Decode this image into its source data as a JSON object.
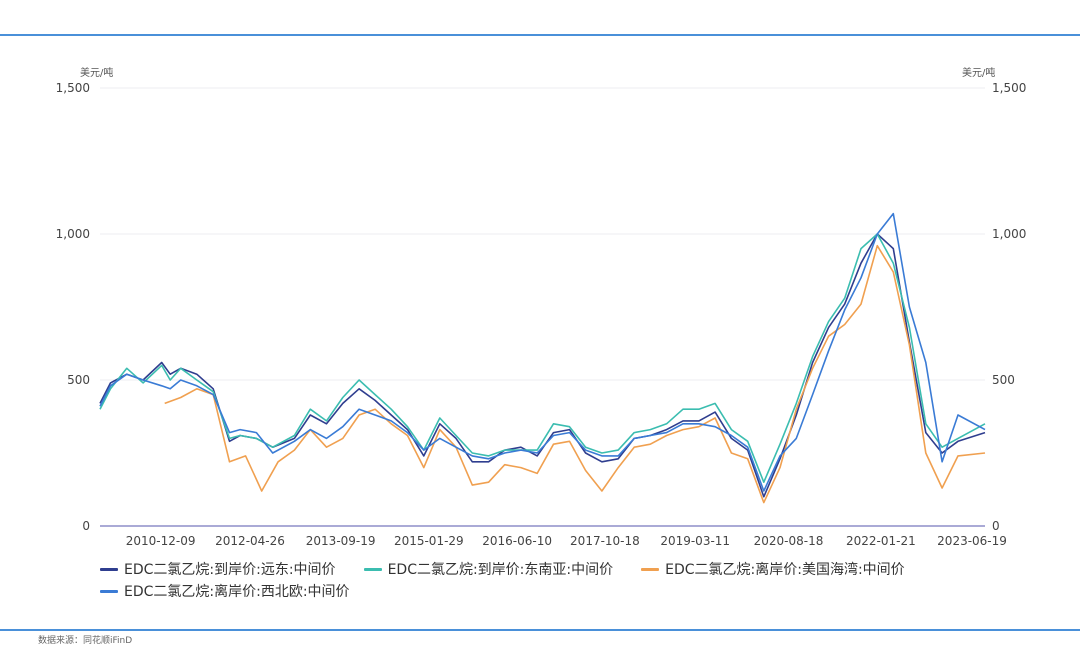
{
  "source_text": "数据来源：同花顺iFinD",
  "chart_data": {
    "type": "line",
    "y_unit_left": "美元/吨",
    "y_unit_right": "美元/吨",
    "ylim": [
      0,
      1500
    ],
    "y_ticks": [
      0,
      500,
      1000,
      1500
    ],
    "y_tick_labels": [
      "0",
      "500",
      "1,000",
      "1,500"
    ],
    "x_range": [
      "2010-01-01",
      "2023-08-31"
    ],
    "x_tick_labels": [
      "2010-12-09",
      "2012-04-26",
      "2013-09-19",
      "2015-01-29",
      "2016-06-10",
      "2017-10-18",
      "2019-03-11",
      "2020-08-18",
      "2022-01-21",
      "2023-06-19"
    ],
    "grid": true,
    "legend_position": "bottom",
    "series": [
      {
        "name": "EDC二氯乙烷:到岸价:远东:中间价",
        "color": "#2f3e8f",
        "x": [
          "2010-01-01",
          "2010-03-01",
          "2010-06-01",
          "2010-09-01",
          "2010-12-15",
          "2011-02-01",
          "2011-04-01",
          "2011-07-01",
          "2011-10-01",
          "2012-01-01",
          "2012-03-01",
          "2012-06-01",
          "2012-09-01",
          "2013-01-01",
          "2013-04-01",
          "2013-07-01",
          "2013-10-01",
          "2014-01-01",
          "2014-04-01",
          "2014-07-01",
          "2014-10-01",
          "2015-01-01",
          "2015-04-01",
          "2015-07-01",
          "2015-10-01",
          "2016-01-01",
          "2016-04-01",
          "2016-07-01",
          "2016-10-01",
          "2017-01-01",
          "2017-04-01",
          "2017-07-01",
          "2017-10-01",
          "2018-01-01",
          "2018-04-01",
          "2018-07-01",
          "2018-10-01",
          "2019-01-01",
          "2019-04-01",
          "2019-07-01",
          "2019-10-01",
          "2020-01-01",
          "2020-04-01",
          "2020-07-01",
          "2020-10-01",
          "2021-01-01",
          "2021-04-01",
          "2021-07-01",
          "2021-10-01",
          "2022-01-01",
          "2022-04-01",
          "2022-07-01",
          "2022-10-01",
          "2023-01-01",
          "2023-04-01",
          "2023-08-31"
        ],
        "values": [
          420,
          490,
          520,
          500,
          560,
          520,
          540,
          520,
          470,
          290,
          310,
          300,
          270,
          300,
          380,
          350,
          420,
          470,
          430,
          380,
          330,
          240,
          350,
          300,
          220,
          220,
          260,
          270,
          240,
          320,
          330,
          250,
          220,
          230,
          300,
          310,
          330,
          360,
          360,
          390,
          300,
          260,
          100,
          230,
          380,
          560,
          680,
          760,
          900,
          1000,
          950,
          630,
          320,
          250,
          290,
          320
        ]
      },
      {
        "name": "EDC二氯乙烷:到岸价:东南亚:中间价",
        "color": "#3bbdb0",
        "x": [
          "2010-01-01",
          "2010-03-01",
          "2010-06-01",
          "2010-09-01",
          "2010-12-15",
          "2011-02-01",
          "2011-04-01",
          "2011-07-01",
          "2011-10-01",
          "2012-01-01",
          "2012-03-01",
          "2012-06-01",
          "2012-09-01",
          "2013-01-01",
          "2013-04-01",
          "2013-07-01",
          "2013-10-01",
          "2014-01-01",
          "2014-04-01",
          "2014-07-01",
          "2014-10-01",
          "2015-01-01",
          "2015-04-01",
          "2015-07-01",
          "2015-10-01",
          "2016-01-01",
          "2016-04-01",
          "2016-07-01",
          "2016-10-01",
          "2017-01-01",
          "2017-04-01",
          "2017-07-01",
          "2017-10-01",
          "2018-01-01",
          "2018-04-01",
          "2018-07-01",
          "2018-10-01",
          "2019-01-01",
          "2019-04-01",
          "2019-07-01",
          "2019-10-01",
          "2020-01-01",
          "2020-04-01",
          "2020-07-01",
          "2020-10-01",
          "2021-01-01",
          "2021-04-01",
          "2021-07-01",
          "2021-10-01",
          "2022-01-01",
          "2022-04-01",
          "2022-07-01",
          "2022-10-01",
          "2023-01-01",
          "2023-04-01",
          "2023-08-31"
        ],
        "values": [
          400,
          470,
          540,
          490,
          550,
          500,
          540,
          500,
          460,
          300,
          310,
          300,
          270,
          310,
          400,
          360,
          440,
          500,
          450,
          400,
          340,
          260,
          370,
          310,
          250,
          240,
          260,
          260,
          260,
          350,
          340,
          270,
          250,
          260,
          320,
          330,
          350,
          400,
          400,
          420,
          330,
          290,
          150,
          280,
          420,
          580,
          700,
          780,
          950,
          1000,
          900,
          680,
          350,
          270,
          300,
          350
        ]
      },
      {
        "name": "EDC二氯乙烷:离岸价:美国海湾:中间价",
        "color": "#f0a050",
        "x": [
          "2011-01-01",
          "2011-04-01",
          "2011-07-01",
          "2011-10-01",
          "2012-01-01",
          "2012-04-01",
          "2012-07-01",
          "2012-10-01",
          "2013-01-01",
          "2013-04-01",
          "2013-07-01",
          "2013-10-01",
          "2014-01-01",
          "2014-04-01",
          "2014-07-01",
          "2014-10-01",
          "2015-01-01",
          "2015-04-01",
          "2015-07-01",
          "2015-10-01",
          "2016-01-01",
          "2016-04-01",
          "2016-07-01",
          "2016-10-01",
          "2017-01-01",
          "2017-04-01",
          "2017-07-01",
          "2017-10-01",
          "2018-01-01",
          "2018-04-01",
          "2018-07-01",
          "2018-10-01",
          "2019-01-01",
          "2019-04-01",
          "2019-07-01",
          "2019-10-01",
          "2020-01-01",
          "2020-04-01",
          "2020-07-01",
          "2020-10-01",
          "2021-01-01",
          "2021-04-01",
          "2021-07-01",
          "2021-10-01",
          "2022-01-01",
          "2022-04-01",
          "2022-07-01",
          "2022-10-01",
          "2023-01-01",
          "2023-04-01",
          "2023-08-31"
        ],
        "values": [
          420,
          440,
          470,
          450,
          220,
          240,
          120,
          220,
          260,
          330,
          270,
          300,
          380,
          400,
          350,
          310,
          200,
          330,
          270,
          140,
          150,
          210,
          200,
          180,
          280,
          290,
          190,
          120,
          200,
          270,
          280,
          310,
          330,
          340,
          370,
          250,
          230,
          80,
          200,
          400,
          540,
          650,
          690,
          760,
          960,
          870,
          620,
          250,
          130,
          240,
          250
        ]
      },
      {
        "name": "EDC二氯乙烷:离岸价:西北欧:中间价",
        "color": "#3a7bd5",
        "x": [
          "2010-01-01",
          "2010-03-01",
          "2010-06-01",
          "2010-09-01",
          "2010-12-15",
          "2011-02-01",
          "2011-04-01",
          "2011-07-01",
          "2011-10-01",
          "2012-01-01",
          "2012-03-01",
          "2012-06-01",
          "2012-09-01",
          "2013-01-01",
          "2013-04-01",
          "2013-07-01",
          "2013-10-01",
          "2014-01-01",
          "2014-04-01",
          "2014-07-01",
          "2014-10-01",
          "2015-01-01",
          "2015-04-01",
          "2015-07-01",
          "2015-10-01",
          "2016-01-01",
          "2016-04-01",
          "2016-07-01",
          "2016-10-01",
          "2017-01-01",
          "2017-04-01",
          "2017-07-01",
          "2017-10-01",
          "2018-01-01",
          "2018-04-01",
          "2018-07-01",
          "2018-10-01",
          "2019-01-01",
          "2019-04-01",
          "2019-07-01",
          "2019-10-01",
          "2020-01-01",
          "2020-04-01",
          "2020-07-01",
          "2020-10-01",
          "2021-01-01",
          "2021-04-01",
          "2021-07-01",
          "2021-10-01",
          "2022-01-01",
          "2022-04-01",
          "2022-07-01",
          "2022-10-01",
          "2023-01-01",
          "2023-04-01",
          "2023-08-31"
        ],
        "values": [
          410,
          480,
          520,
          500,
          480,
          470,
          500,
          480,
          450,
          320,
          330,
          320,
          250,
          290,
          330,
          300,
          340,
          400,
          380,
          360,
          320,
          260,
          300,
          270,
          240,
          230,
          250,
          260,
          250,
          310,
          320,
          260,
          240,
          240,
          300,
          310,
          320,
          350,
          350,
          340,
          310,
          270,
          120,
          240,
          300,
          450,
          600,
          740,
          850,
          1000,
          1070,
          750,
          560,
          220,
          380,
          330
        ]
      }
    ]
  }
}
